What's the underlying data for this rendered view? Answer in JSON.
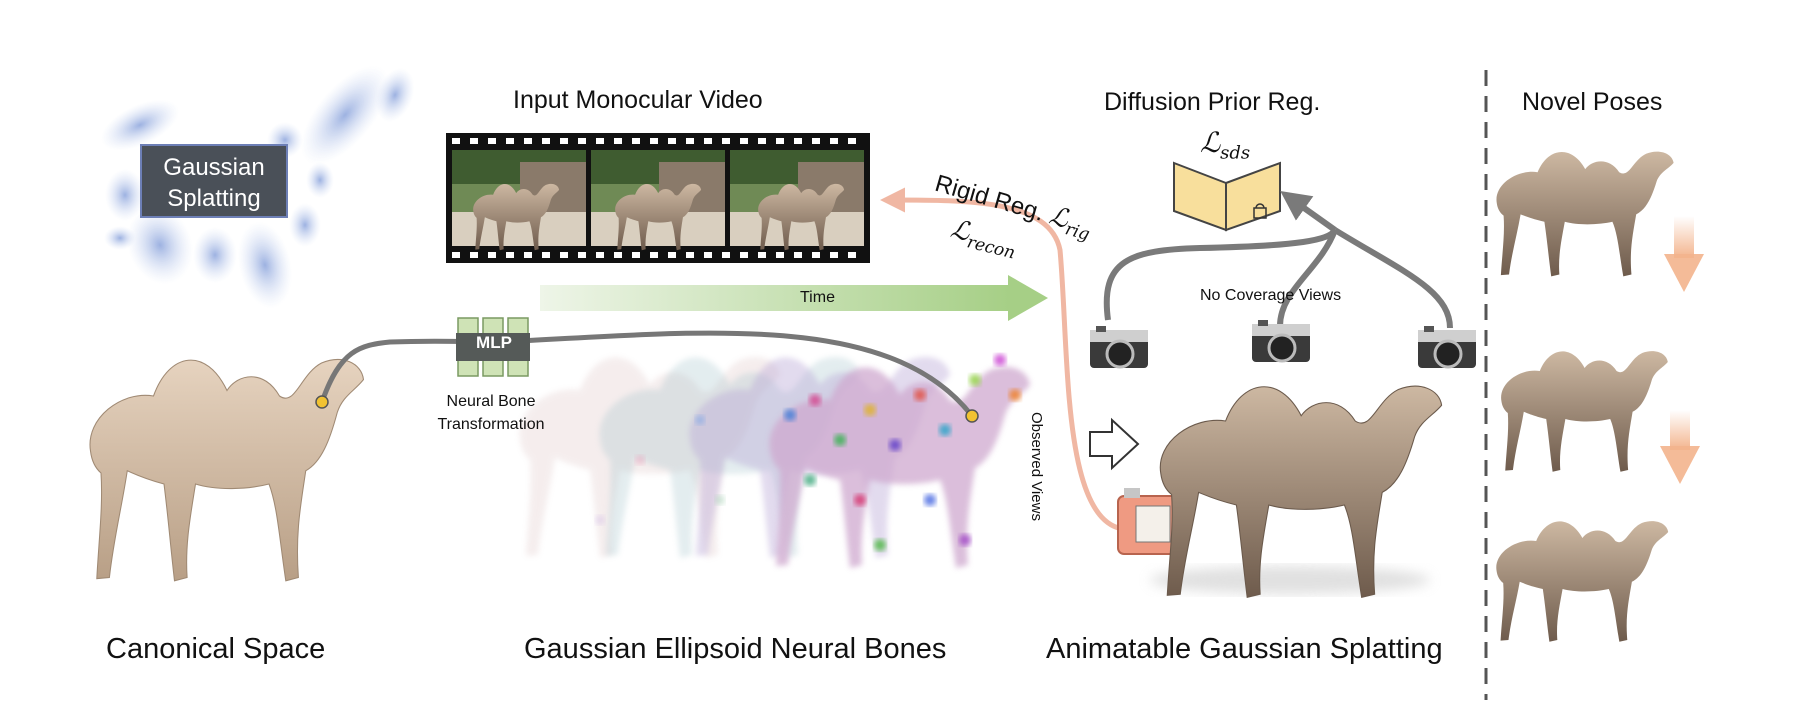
{
  "sections": {
    "canonical_space": "Canonical Space",
    "neural_bones": "Gaussian Ellipsoid Neural Bones",
    "animatable": "Animatable Gaussian Splatting",
    "novel_poses": "Novel Poses"
  },
  "gaussian_box": {
    "line1": "Gaussian",
    "line2": "Splatting"
  },
  "video_title": "Input Monocular Video",
  "diffusion_title": "Diffusion Prior Reg.",
  "loss_sds": "ℒsds",
  "loss_sds_main": "ℒ",
  "loss_sds_sub": "sds",
  "rigid_reg": "Rigid Reg.",
  "loss_rig_main": "ℒ",
  "loss_rig_sub": "rig",
  "loss_recon_main": "ℒ",
  "loss_recon_sub": "recon",
  "time_label": "Time",
  "mlp_label": "MLP",
  "neural_bone": {
    "line1": "Neural Bone",
    "line2": "Transformation"
  },
  "no_coverage": "No Coverage Views",
  "observed_views": "Observed Views",
  "colors": {
    "arrow_gray": "#7a7a7a",
    "recon_pink": "#f0b7a3",
    "time_green": "#a6cf86",
    "mlp_green": "#cfe3b6",
    "diffusion_yellow": "#f8df9c",
    "gaussian_blue": "#a9bde6"
  }
}
